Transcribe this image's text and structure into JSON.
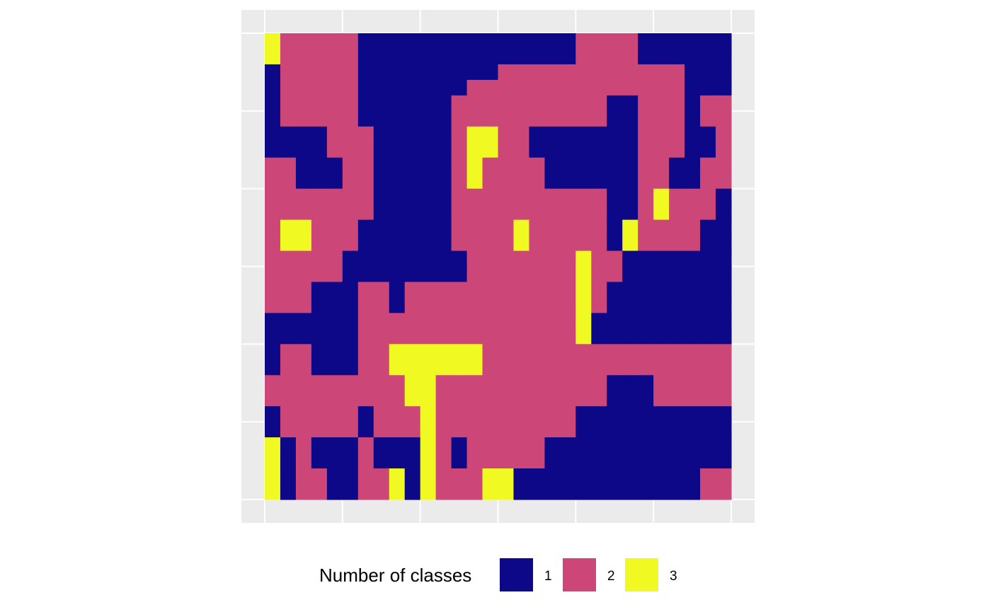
{
  "chart_data": {
    "type": "heatmap",
    "title": "",
    "xlabel": "",
    "ylabel": "",
    "grid": true,
    "legend_position": "bottom",
    "legend": {
      "title": "Number of classes",
      "entries": [
        {
          "label": "1",
          "value": 1,
          "color": "#0d0887"
        },
        {
          "label": "2",
          "value": 2,
          "color": "#cc4778"
        },
        {
          "label": "3",
          "value": 3,
          "color": "#f0f921"
        }
      ]
    },
    "panel_background": "#ebebeb",
    "gridline_color": "#ffffff",
    "n_cols": 30,
    "n_rows": 30,
    "rows": [
      "322222111111111111112222111111",
      "322222111111111111112222111111",
      "122222111111111222222222222111",
      "122222111111122222222222222111",
      "122222111111222222222211222122",
      "122222111111222222222211222122",
      "111122211111233221111111222112",
      "111122211111233221111111222112",
      "221112211111232222111111221122",
      "221112211111232222111111221122",
      "222222211111222222222211232221",
      "222222211111222222222211232221",
      "233222111111222232222213222211",
      "233222111111222232222213222211",
      "222221111111122222223221111111",
      "222221111111122222223221111111",
      "222111221222222222223211111111",
      "222111221222222222223211111111",
      "111111222222222222223111111111",
      "111111222222222222223111111111",
      "122111223333332222222222222222",
      "122111223333332222222222222222",
      "222222222332222222222211122222",
      "222222222332222222222211122222",
      "122222122232222222221111111111",
      "122222122232222222221111111111",
      "312111211132122222111111111111",
      "312111211132122222111111111111",
      "312211223132223311111111111122",
      "312211223132223311111111111122"
    ]
  }
}
